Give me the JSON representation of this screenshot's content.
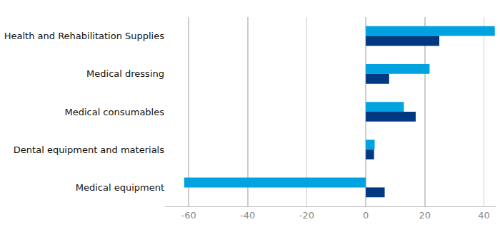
{
  "chart_data": {
    "type": "bar",
    "orientation": "horizontal",
    "categories": [
      "Health and Rehabilitation Supplies",
      "Medical dressing",
      "Medical consumables",
      "Dental equipment and materials",
      "Medical equipment"
    ],
    "series": [
      {
        "color": "#00a3e0",
        "values": [
          43.7,
          21.6,
          12.9,
          3.0,
          -61.5
        ]
      },
      {
        "color": "#003882",
        "values": [
          24.9,
          7.9,
          16.9,
          2.8,
          6.4
        ]
      }
    ],
    "xlim": [
      -68,
      44
    ],
    "xticks": [
      -60,
      -40,
      -20,
      0,
      20,
      40
    ],
    "grid": true
  }
}
